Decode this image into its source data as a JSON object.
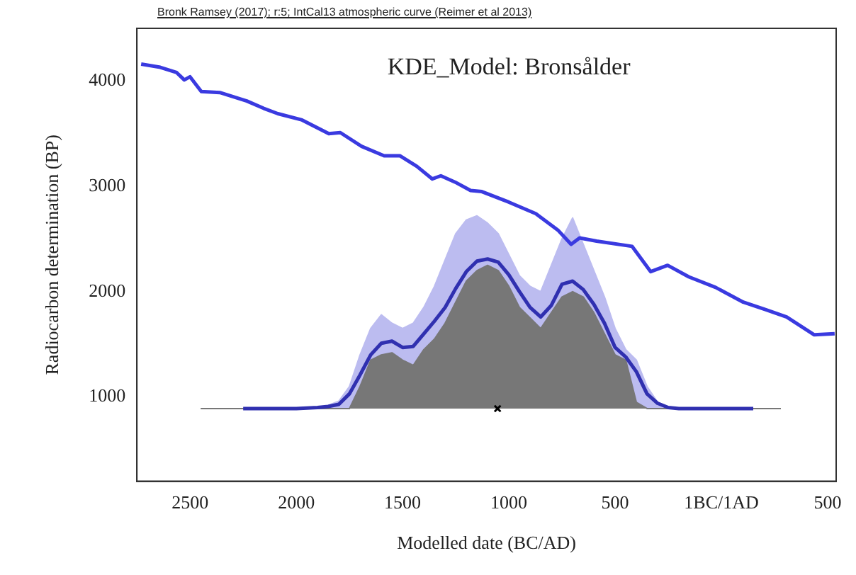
{
  "chart_data": {
    "type": "line",
    "title": "KDE_Model: Bronsålder",
    "subtitle": "Bronk Ramsey (2017); r:5; IntCal13 atmospheric curve (Reimer et al 2013)",
    "xlabel": "Modelled date (BC/AD)",
    "ylabel": "Radiocarbon determination (BP)",
    "xlim": [
      -2750,
      540
    ],
    "ylim": [
      200,
      4500
    ],
    "xticks": [
      {
        "value": -2500,
        "label": "2500"
      },
      {
        "value": -2000,
        "label": "2000"
      },
      {
        "value": -1500,
        "label": "1500"
      },
      {
        "value": -1000,
        "label": "1000"
      },
      {
        "value": -500,
        "label": "500"
      },
      {
        "value": 0,
        "label": "1BC/1AD"
      },
      {
        "value": 500,
        "label": "500"
      }
    ],
    "yticks": [
      1000,
      2000,
      3000,
      4000
    ],
    "grid": false,
    "legend": false,
    "series": [
      {
        "type": "area",
        "color": "#bcbcf0",
        "x": [
          -1900,
          -1850,
          -1800,
          -1750,
          -1700,
          -1650,
          -1600,
          -1550,
          -1500,
          -1450,
          -1400,
          -1350,
          -1300,
          -1250,
          -1200,
          -1150,
          -1100,
          -1050,
          -1000,
          -950,
          -900,
          -850,
          -800,
          -750,
          -700,
          -650,
          -600,
          -550,
          -500,
          -450,
          -400,
          -350,
          -300,
          -250,
          -200
        ],
        "values": [
          890,
          920,
          960,
          1100,
          1400,
          1650,
          1780,
          1700,
          1650,
          1700,
          1850,
          2050,
          2300,
          2550,
          2680,
          2720,
          2650,
          2550,
          2350,
          2150,
          2050,
          2000,
          2250,
          2500,
          2700,
          2450,
          2200,
          1950,
          1650,
          1450,
          1350,
          1100,
          950,
          900,
          890
        ]
      },
      {
        "type": "area",
        "color": "#777777",
        "x": [
          -2450,
          -1750,
          -1700,
          -1650,
          -1600,
          -1550,
          -1500,
          -1450,
          -1400,
          -1350,
          -1300,
          -1250,
          -1200,
          -1150,
          -1100,
          -1050,
          -1000,
          -950,
          -900,
          -850,
          -800,
          -750,
          -700,
          -650,
          -600,
          -550,
          -500,
          -450,
          -400,
          -350,
          280
        ],
        "values": [
          890,
          890,
          1100,
          1350,
          1400,
          1420,
          1350,
          1300,
          1450,
          1550,
          1700,
          1900,
          2100,
          2200,
          2250,
          2200,
          2050,
          1850,
          1750,
          1650,
          1800,
          1950,
          2000,
          1950,
          1800,
          1600,
          1400,
          1350,
          950,
          890,
          890
        ]
      },
      {
        "color": "#3030b0",
        "x": [
          -2250,
          -2000,
          -1900,
          -1850,
          -1800,
          -1750,
          -1700,
          -1650,
          -1600,
          -1550,
          -1500,
          -1450,
          -1400,
          -1350,
          -1300,
          -1250,
          -1200,
          -1150,
          -1100,
          -1050,
          -1000,
          -950,
          -900,
          -850,
          -800,
          -750,
          -700,
          -650,
          -600,
          -550,
          -500,
          -450,
          -400,
          -350,
          -300,
          -250,
          -200,
          150
        ],
        "values": [
          890,
          890,
          900,
          910,
          930,
          1030,
          1210,
          1400,
          1510,
          1530,
          1470,
          1480,
          1600,
          1720,
          1850,
          2030,
          2190,
          2290,
          2310,
          2280,
          2160,
          2000,
          1850,
          1760,
          1870,
          2070,
          2100,
          2020,
          1880,
          1700,
          1470,
          1380,
          1240,
          1030,
          940,
          900,
          890,
          890
        ]
      },
      {
        "color": "#3a3ae0",
        "x": [
          -2730,
          -2640,
          -2563,
          -2527,
          -2500,
          -2447,
          -2360,
          -2233,
          -2153,
          -2087,
          -1973,
          -1847,
          -1793,
          -1693,
          -1587,
          -1513,
          -1433,
          -1360,
          -1320,
          -1253,
          -1180,
          -1127,
          -1000,
          -873,
          -767,
          -707,
          -667,
          -587,
          -420,
          -333,
          -253,
          -153,
          -27,
          103,
          207,
          307,
          437,
          533
        ],
        "values": [
          4160,
          4130,
          4080,
          4010,
          4040,
          3900,
          3890,
          3810,
          3740,
          3690,
          3630,
          3500,
          3510,
          3380,
          3290,
          3290,
          3190,
          3070,
          3100,
          3040,
          2960,
          2950,
          2850,
          2740,
          2580,
          2450,
          2510,
          2480,
          2430,
          2190,
          2250,
          2140,
          2040,
          1900,
          1830,
          1760,
          1590,
          1600
        ]
      },
      {
        "type": "scatter",
        "color": "#000000",
        "marker": "cross",
        "x": [
          -1053
        ],
        "values": [
          890
        ]
      }
    ]
  }
}
